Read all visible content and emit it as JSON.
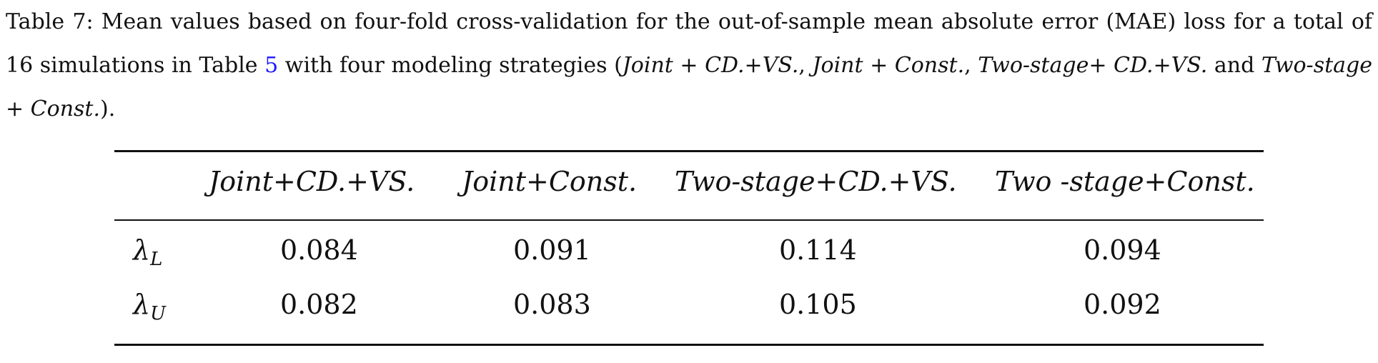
{
  "caption": {
    "label": "Table 7:",
    "text_1": "Mean values based on four-fold cross-validation for the out-of-sample mean absolute error (MAE) loss for a total of 16 simulations in Table",
    "table_ref": "5",
    "text_2": "with four modeling strategies (",
    "strategy_1": "Joint + CD.+VS.",
    "strategy_2": "Joint + Const.",
    "strategy_3": "Two-stage+ CD.+VS.",
    "and_word": "and",
    "strategy_4": "Two-stage + Const.",
    "text_end": ")."
  },
  "table": {
    "columns": [
      "Joint+CD.+VS.",
      "Joint+Const.",
      "Two-stage+CD.+VS.",
      "Two -stage+Const."
    ],
    "rows": [
      {
        "label_symbol": "λ",
        "label_sub": "L",
        "values": [
          "0.084",
          "0.091",
          "0.114",
          "0.094"
        ]
      },
      {
        "label_symbol": "λ",
        "label_sub": "U",
        "values": [
          "0.082",
          "0.083",
          "0.105",
          "0.092"
        ]
      }
    ]
  }
}
